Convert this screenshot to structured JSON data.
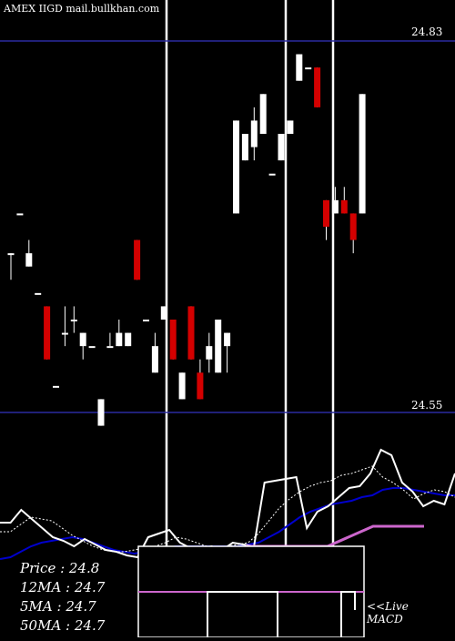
{
  "header": {
    "ticker": "AMEX  IIGD mail.bullkhan.com"
  },
  "price_axis": {
    "high_label": "24.83",
    "low_label": "24.55"
  },
  "stats": {
    "price": "Price   :  24.8",
    "ma12": "12MA : 24.7",
    "ma5": "5MA : 24.7",
    "ma50": "50MA : 24.7"
  },
  "macd": {
    "live": "<<Live",
    "label": "MACD"
  },
  "colors": {
    "background": "#000000",
    "up": "#ffffff",
    "down": "#d40000",
    "level_line": "#2a2aa0",
    "ma_fast": "#ffffff",
    "ma_slow": "#0000cc",
    "ma_long": "#cc66cc"
  },
  "chart_data": {
    "type": "candlestick",
    "ylim": [
      24.54,
      24.84
    ],
    "levels": [
      24.83,
      24.55
    ],
    "candles": [
      {
        "o": 24.67,
        "h": 24.67,
        "l": 24.65,
        "c": 24.67
      },
      {
        "o": 24.7,
        "h": 24.7,
        "l": 24.7,
        "c": 24.7
      },
      {
        "o": 24.66,
        "h": 24.68,
        "l": 24.66,
        "c": 24.67
      },
      {
        "o": 24.64,
        "h": 24.64,
        "l": 24.64,
        "c": 24.64
      },
      {
        "o": 24.63,
        "h": 24.63,
        "l": 24.59,
        "c": 24.59
      },
      {
        "o": 24.57,
        "h": 24.57,
        "l": 24.57,
        "c": 24.57
      },
      {
        "o": 24.61,
        "h": 24.63,
        "l": 24.6,
        "c": 24.61
      },
      {
        "o": 24.62,
        "h": 24.63,
        "l": 24.61,
        "c": 24.62
      },
      {
        "o": 24.6,
        "h": 24.61,
        "l": 24.59,
        "c": 24.61
      },
      {
        "o": 24.6,
        "h": 24.6,
        "l": 24.6,
        "c": 24.6
      },
      {
        "o": 24.54,
        "h": 24.56,
        "l": 24.54,
        "c": 24.56
      },
      {
        "o": 24.6,
        "h": 24.61,
        "l": 24.6,
        "c": 24.6
      },
      {
        "o": 24.6,
        "h": 24.62,
        "l": 24.6,
        "c": 24.61
      },
      {
        "o": 24.6,
        "h": 24.61,
        "l": 24.6,
        "c": 24.61
      },
      {
        "o": 24.68,
        "h": 24.68,
        "l": 24.65,
        "c": 24.65
      },
      {
        "o": 24.62,
        "h": 24.62,
        "l": 24.62,
        "c": 24.62
      },
      {
        "o": 24.58,
        "h": 24.61,
        "l": 24.58,
        "c": 24.6
      },
      {
        "o": 24.62,
        "h": 24.63,
        "l": 24.62,
        "c": 24.63
      },
      {
        "o": 24.62,
        "h": 24.62,
        "l": 24.59,
        "c": 24.59
      },
      {
        "o": 24.56,
        "h": 24.58,
        "l": 24.56,
        "c": 24.58
      },
      {
        "o": 24.63,
        "h": 24.63,
        "l": 24.59,
        "c": 24.59
      },
      {
        "o": 24.58,
        "h": 24.59,
        "l": 24.56,
        "c": 24.56
      },
      {
        "o": 24.59,
        "h": 24.61,
        "l": 24.58,
        "c": 24.6
      },
      {
        "o": 24.58,
        "h": 24.62,
        "l": 24.58,
        "c": 24.62
      },
      {
        "o": 24.6,
        "h": 24.61,
        "l": 24.58,
        "c": 24.61
      },
      {
        "o": 24.7,
        "h": 24.77,
        "l": 24.7,
        "c": 24.77
      },
      {
        "o": 24.74,
        "h": 24.76,
        "l": 24.74,
        "c": 24.76
      },
      {
        "o": 24.75,
        "h": 24.78,
        "l": 24.74,
        "c": 24.77
      },
      {
        "o": 24.76,
        "h": 24.79,
        "l": 24.76,
        "c": 24.79
      },
      {
        "o": 24.73,
        "h": 24.73,
        "l": 24.73,
        "c": 24.73
      },
      {
        "o": 24.74,
        "h": 24.76,
        "l": 24.74,
        "c": 24.76
      },
      {
        "o": 24.76,
        "h": 24.77,
        "l": 24.76,
        "c": 24.77
      },
      {
        "o": 24.8,
        "h": 24.82,
        "l": 24.8,
        "c": 24.82
      },
      {
        "o": 24.81,
        "h": 24.81,
        "l": 24.81,
        "c": 24.81
      },
      {
        "o": 24.81,
        "h": 24.81,
        "l": 24.78,
        "c": 24.78
      },
      {
        "o": 24.71,
        "h": 24.71,
        "l": 24.68,
        "c": 24.69
      },
      {
        "o": 24.7,
        "h": 24.72,
        "l": 24.7,
        "c": 24.71
      },
      {
        "o": 24.71,
        "h": 24.72,
        "l": 24.7,
        "c": 24.7
      },
      {
        "o": 24.7,
        "h": 24.7,
        "l": 24.67,
        "c": 24.68
      },
      {
        "o": 24.7,
        "h": 24.79,
        "l": 24.7,
        "c": 24.79
      }
    ],
    "ma_lines": {
      "fast": [
        584,
        584,
        576,
        568,
        570,
        572,
        580,
        588,
        594,
        600,
        604,
        606,
        606,
        604,
        602,
        600,
        596,
        590,
        592,
        596,
        600,
        600,
        600,
        598,
        596,
        586,
        572,
        558,
        548,
        540,
        534,
        530,
        528,
        522,
        520,
        516,
        512,
        524,
        530,
        538,
        548,
        542,
        538,
        540,
        546
      ],
      "slow": [
        614,
        612,
        606,
        600,
        596,
        594,
        592,
        590,
        592,
        596,
        600,
        604,
        606,
        608,
        606,
        604,
        602,
        600,
        600,
        600,
        600,
        600,
        600,
        600,
        598,
        596,
        590,
        584,
        576,
        568,
        562,
        558,
        554,
        552,
        550,
        546,
        544,
        538,
        536,
        536,
        538,
        540,
        542,
        544,
        544
      ],
      "long": [
        700,
        700,
        700,
        700,
        700,
        700,
        700,
        700,
        700,
        700,
        700,
        700,
        700,
        700,
        700,
        700,
        700,
        700,
        700,
        700,
        700,
        700,
        700,
        700,
        700,
        700,
        700,
        700,
        700,
        700,
        700,
        700,
        700,
        700,
        700,
        700,
        700,
        700,
        700,
        700,
        700,
        700,
        700,
        700,
        700
      ],
      "price": [
        574,
        574,
        560,
        570,
        580,
        590,
        594,
        600,
        592,
        598,
        604,
        606,
        610,
        612,
        590,
        586,
        582,
        596,
        602,
        602,
        600,
        604,
        596,
        598,
        600,
        530,
        528,
        526,
        524,
        580,
        562,
        556,
        546,
        536,
        534,
        520,
        494,
        500,
        530,
        540,
        556,
        550,
        554,
        520
      ]
    }
  }
}
